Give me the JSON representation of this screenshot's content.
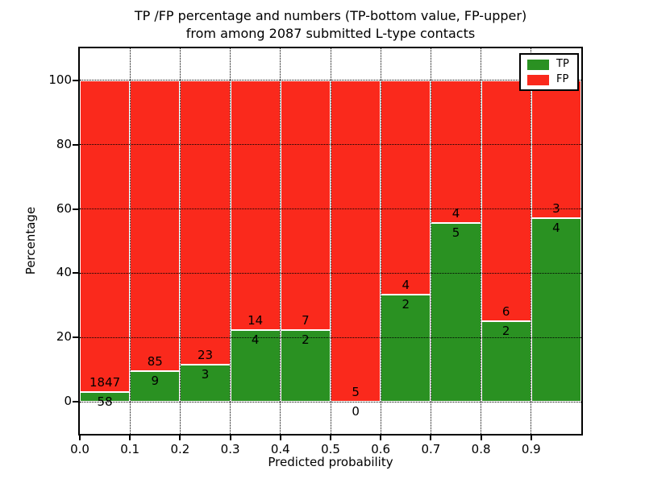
{
  "chart_data": {
    "type": "bar",
    "stacked": true,
    "normalized_to_percent": true,
    "title": "TP /FP percentage and numbers (TP-bottom value, FP-upper)\nfrom among 2087 submitted L-type contacts",
    "xlabel": "Predicted probability",
    "ylabel": "Percentage",
    "xlim": [
      0.0,
      1.0
    ],
    "ylim": [
      -10,
      110
    ],
    "bin_width": 0.1,
    "bin_starts": [
      0.0,
      0.1,
      0.2,
      0.3,
      0.4,
      0.5,
      0.6,
      0.7,
      0.8,
      0.9
    ],
    "x_tick_labels": [
      "0.0",
      "0.1",
      "0.2",
      "0.3",
      "0.4",
      "0.5",
      "0.6",
      "0.7",
      "0.8",
      "0.9"
    ],
    "y_tick_values": [
      0,
      20,
      40,
      60,
      80,
      100
    ],
    "y_tick_labels": [
      "0",
      "20",
      "40",
      "60",
      "80",
      "100"
    ],
    "series": [
      {
        "name": "TP",
        "color": "#2a9122",
        "counts": [
          58,
          9,
          3,
          4,
          2,
          0,
          2,
          5,
          2,
          4
        ],
        "percent": [
          3.04,
          9.57,
          11.54,
          22.22,
          22.22,
          0.0,
          33.33,
          55.56,
          25.0,
          57.14
        ]
      },
      {
        "name": "FP",
        "color": "#fa291c",
        "counts": [
          1847,
          85,
          23,
          14,
          7,
          5,
          4,
          4,
          6,
          3
        ],
        "percent": [
          96.96,
          90.43,
          88.46,
          77.78,
          77.78,
          100.0,
          66.67,
          44.44,
          75.0,
          42.86
        ]
      }
    ],
    "legend_position": "upper right",
    "grid": {
      "style": "dotted",
      "color": "#000000"
    },
    "colors": {
      "background": "#ffffff",
      "spine": "#000000",
      "bar_edge": "#ffffff",
      "label_text": "#000000"
    }
  }
}
